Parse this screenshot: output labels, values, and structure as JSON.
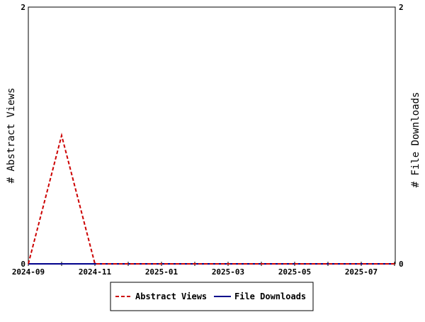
{
  "chart_data": {
    "type": "line",
    "x_tick_labels": [
      "2024-09",
      "2024-11",
      "2025-01",
      "2025-03",
      "2025-05",
      "2025-07"
    ],
    "x_months": [
      "2024-09",
      "2024-10",
      "2024-11",
      "2024-12",
      "2025-01",
      "2025-02",
      "2025-03",
      "2025-04",
      "2025-05",
      "2025-06",
      "2025-07",
      "2025-08"
    ],
    "series": [
      {
        "name": "Abstract Views",
        "axis": "left",
        "color": "#cc0000",
        "dash": "dashed",
        "values": [
          0,
          1,
          0,
          0,
          0,
          0,
          0,
          0,
          0,
          0,
          0,
          0
        ]
      },
      {
        "name": "File Downloads",
        "axis": "right",
        "color": "#00008b",
        "dash": "solid",
        "values": [
          0,
          0,
          0,
          0,
          0,
          0,
          0,
          0,
          0,
          0,
          0,
          0
        ]
      }
    ],
    "ylabel_left": "# Abstract Views",
    "ylabel_right": "# File Downloads",
    "ylim_left": [
      0,
      2
    ],
    "ylim_right": [
      0,
      2
    ],
    "y_ticks_left": [
      "0",
      "2"
    ],
    "y_ticks_right": [
      "0",
      "2"
    ],
    "grid": false,
    "legend_position": "bottom-center"
  }
}
